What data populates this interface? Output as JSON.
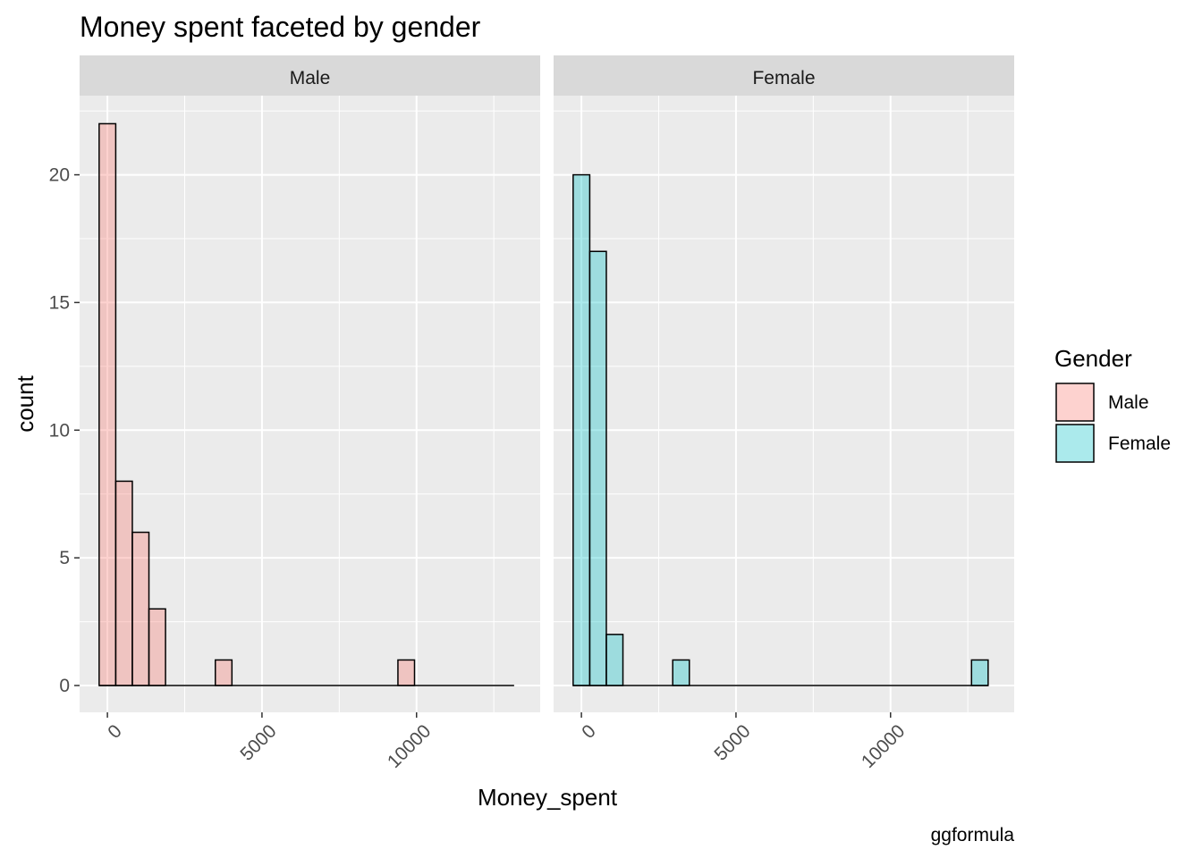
{
  "chart_data": {
    "type": "bar",
    "subtype": "faceted-histogram",
    "title": "Money spent faceted by gender",
    "xlabel": "Money_spent",
    "ylabel": "count",
    "caption": "ggformula",
    "xlim": [
      -900,
      14000
    ],
    "ylim": [
      -1.05,
      23.1
    ],
    "x_ticks": [
      0,
      5000,
      10000
    ],
    "y_ticks": [
      0,
      5,
      10,
      15,
      20
    ],
    "grid": true,
    "bin_width": 537,
    "bin_range": [
      -268,
      13157
    ],
    "legend": {
      "title": "Gender",
      "position": "right",
      "entries": [
        {
          "label": "Male",
          "color": "#F8766D"
        },
        {
          "label": "Female",
          "color": "#00BFC4"
        }
      ]
    },
    "facets": [
      {
        "label": "Male",
        "color": "#F8766D",
        "bins": [
          {
            "x_start": -268,
            "x_end": 269,
            "count": 22
          },
          {
            "x_start": 269,
            "x_end": 806,
            "count": 8
          },
          {
            "x_start": 806,
            "x_end": 1343,
            "count": 6
          },
          {
            "x_start": 1343,
            "x_end": 1880,
            "count": 3
          },
          {
            "x_start": 3491,
            "x_end": 4028,
            "count": 1
          },
          {
            "x_start": 9398,
            "x_end": 9935,
            "count": 1
          }
        ]
      },
      {
        "label": "Female",
        "color": "#00BFC4",
        "bins": [
          {
            "x_start": -268,
            "x_end": 269,
            "count": 20
          },
          {
            "x_start": 269,
            "x_end": 806,
            "count": 17
          },
          {
            "x_start": 806,
            "x_end": 1343,
            "count": 2
          },
          {
            "x_start": 2954,
            "x_end": 3491,
            "count": 1
          },
          {
            "x_start": 12620,
            "x_end": 13157,
            "count": 1
          }
        ]
      }
    ]
  }
}
